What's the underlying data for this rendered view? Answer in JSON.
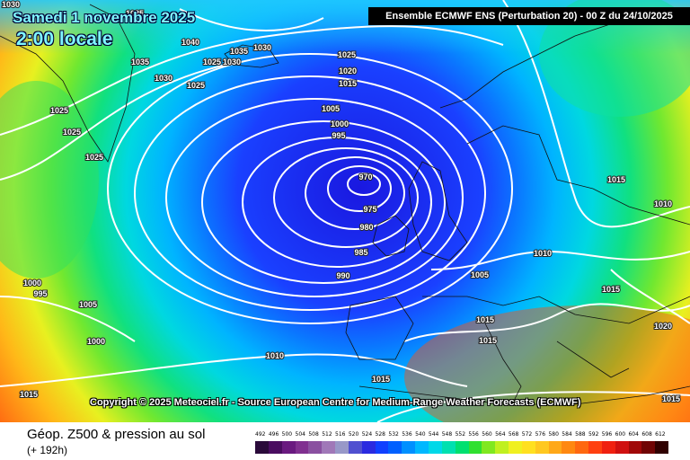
{
  "header": {
    "title": "Ensemble ECMWF ENS  (Perturbation 20)  - 00 Z du 24/10/2025",
    "date": "Samedi 1 novembre 2025",
    "time": "2:00 locale"
  },
  "copyright": "Copyright © 2025 Meteociel.fr - Source European Centre for Medium-Range Weather Forecasts (ECMWF)",
  "footer": {
    "title": "Géop. Z500 & pression au sol",
    "subtitle": "(+ 192h)"
  },
  "scale": {
    "values": [
      "492",
      "496",
      "500",
      "504",
      "508",
      "512",
      "516",
      "520",
      "524",
      "528",
      "532",
      "536",
      "540",
      "544",
      "548",
      "552",
      "556",
      "560",
      "564",
      "568",
      "572",
      "576",
      "580",
      "584",
      "588",
      "592",
      "596",
      "600",
      "604",
      "608",
      "612"
    ],
    "colors": [
      "#2a0a3a",
      "#4a0d60",
      "#6a1a80",
      "#803090",
      "#8a50a0",
      "#a078b8",
      "#9898c8",
      "#5050d0",
      "#2a2ae0",
      "#1040ff",
      "#0060ff",
      "#0090ff",
      "#00b8ff",
      "#00d8e8",
      "#00e0b0",
      "#00e070",
      "#30e030",
      "#80e820",
      "#c0f020",
      "#f0f020",
      "#ffe020",
      "#ffc820",
      "#ffa818",
      "#ff8810",
      "#ff6810",
      "#ff4010",
      "#f02010",
      "#d01010",
      "#a00808",
      "#700404",
      "#300000"
    ]
  },
  "isobar_labels": [
    "1030",
    "1035",
    "1040",
    "1035",
    "1030",
    "1030",
    "1025",
    "1030",
    "1035",
    "1025",
    "1025",
    "1025",
    "1025",
    "1020",
    "1015",
    "1005",
    "1000",
    "995",
    "970",
    "975",
    "980",
    "985",
    "990",
    "1025",
    "1015",
    "1010",
    "1010",
    "1015",
    "1005",
    "1015",
    "1015",
    "1020",
    "1000",
    "995",
    "1005",
    "1000",
    "1010",
    "1015",
    "1015",
    "1015"
  ],
  "map_colors": {
    "low_center": "#1020e0",
    "cyan": "#00c8ff",
    "green": "#40e040",
    "yellow": "#f0f020",
    "orange": "#ff9018",
    "red": "#ff5010"
  }
}
